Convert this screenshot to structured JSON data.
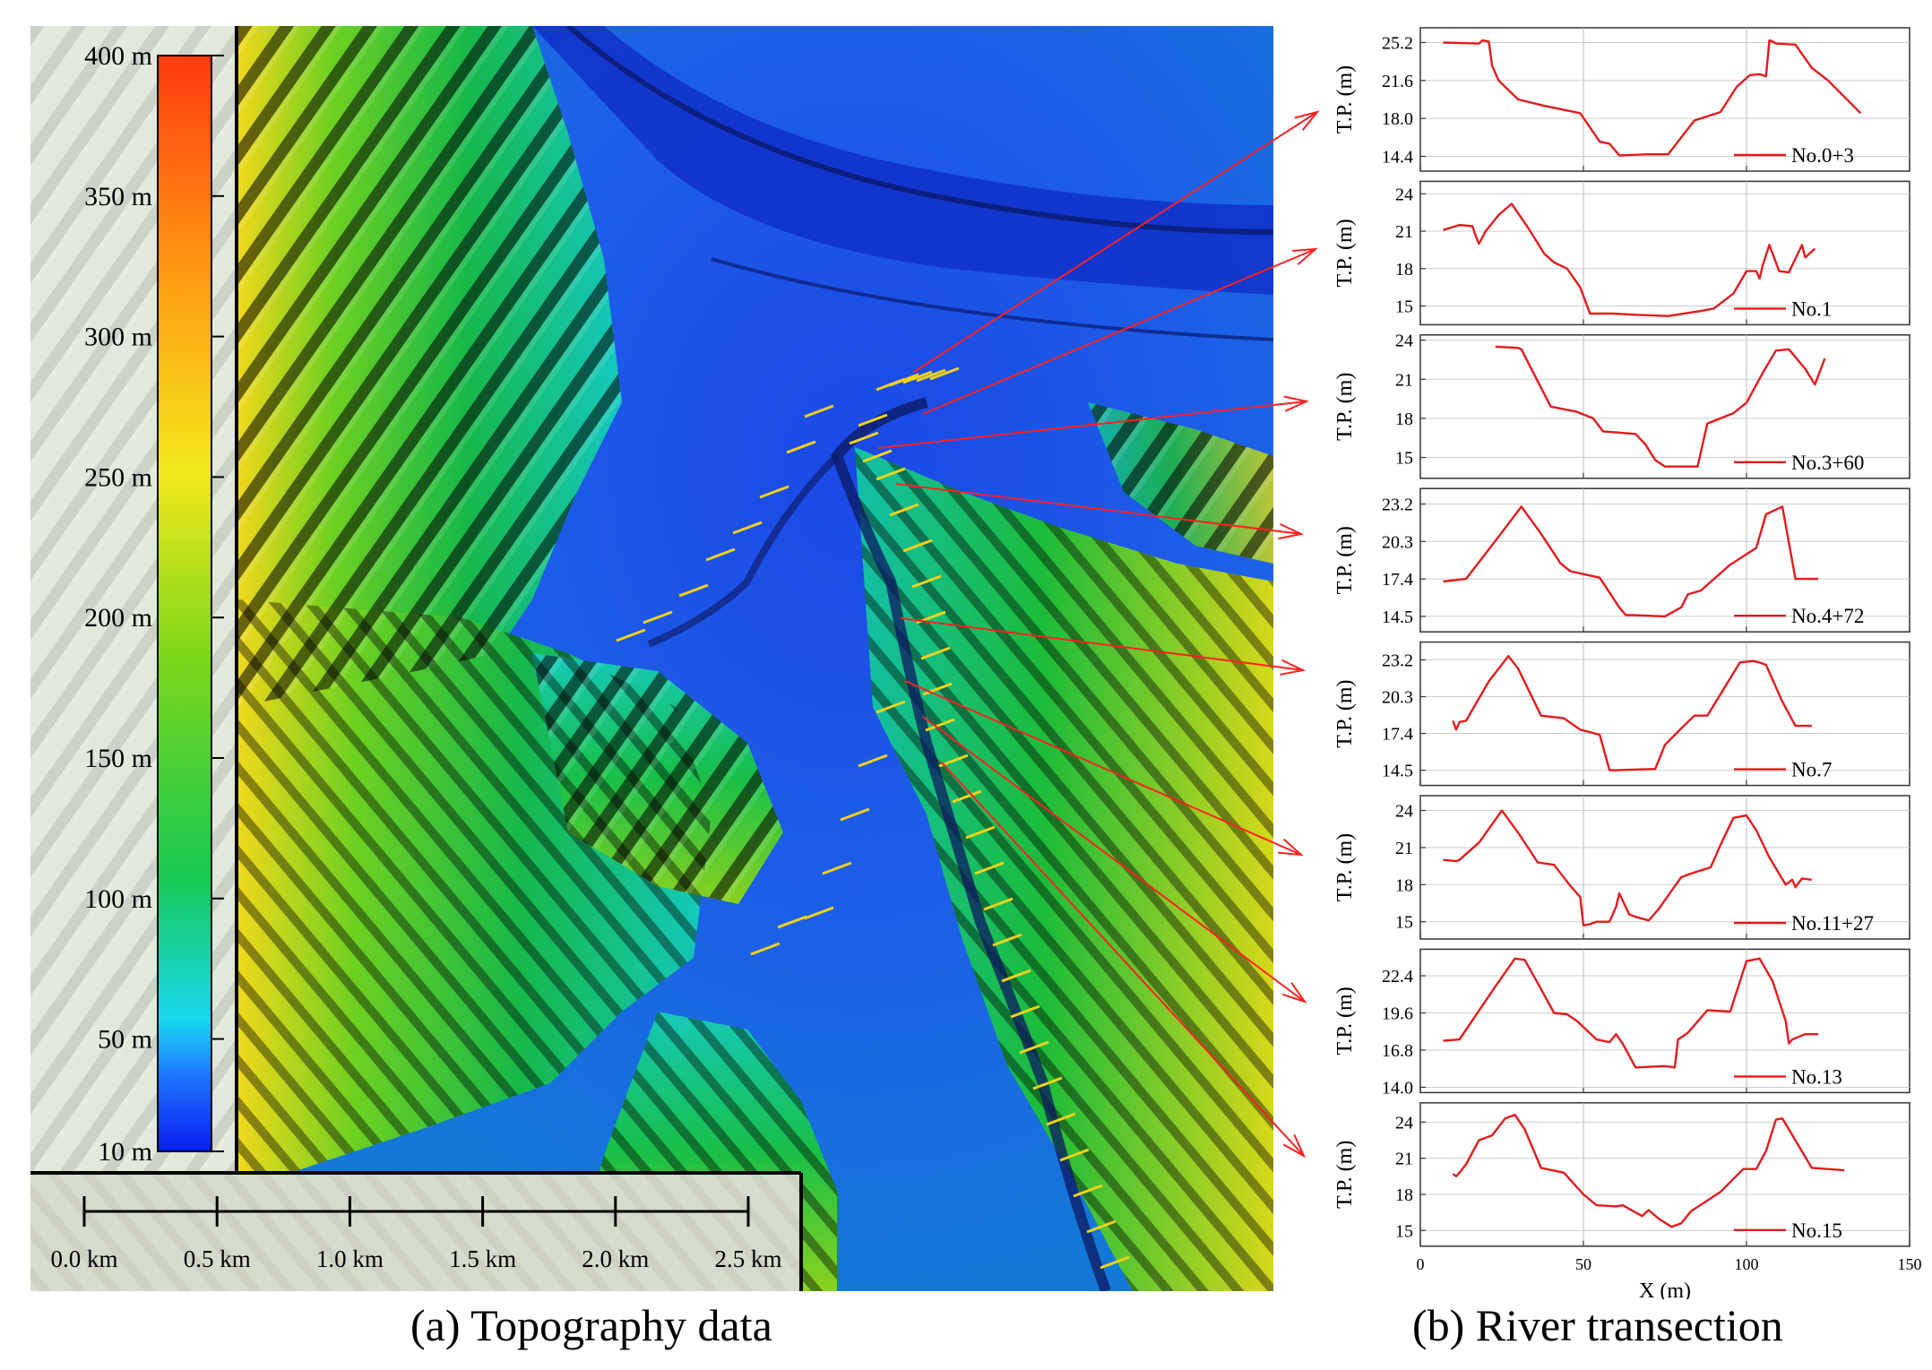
{
  "colors": {
    "profile_line": "#e41a1c",
    "pointer_arrow": "#ff2020",
    "transect_marker": "#f2d21b",
    "river_channel": "#1a3c8c",
    "elevation_ramp": [
      "#0a1cf0",
      "#1f78ff",
      "#18d8f0",
      "#17c853",
      "#7cd619",
      "#f2e81c",
      "#ff9a12",
      "#ff3a10"
    ]
  },
  "map": {
    "caption": "(a) Topography data",
    "colorbar": {
      "unit": "m",
      "labels": [
        "400 m",
        "350 m",
        "300 m",
        "250 m",
        "200 m",
        "150 m",
        "100 m",
        "50 m",
        "10 m"
      ],
      "min": 10,
      "max": 400
    },
    "scalebar": {
      "labels": [
        "0.0 km",
        "0.5 km",
        "1.0 km",
        "1.5 km",
        "2.0 km",
        "2.5 km"
      ]
    }
  },
  "transect_caption": "(b) River transection",
  "chart_data": {
    "type": "line",
    "xlabel": "X (m)",
    "ylabel": "T.P. (m)",
    "xlim": [
      0,
      150
    ],
    "xticks": [
      0,
      50,
      100,
      150
    ],
    "grid": true,
    "legend_placement": "bottom-right",
    "panels": [
      {
        "name": "No.0+3",
        "yticks": [
          "25.2",
          "21.6",
          "18.0",
          "14.4"
        ],
        "ylim": [
          13,
          26.6
        ],
        "x": [
          7,
          18,
          19,
          21,
          22,
          24,
          30,
          38,
          49,
          55,
          58,
          61,
          70,
          76,
          84,
          92,
          97,
          101,
          104,
          106,
          107,
          108,
          109,
          115,
          120,
          125,
          135
        ],
        "y": [
          25.2,
          25.1,
          25.4,
          25.3,
          23.0,
          21.6,
          19.8,
          19.2,
          18.5,
          15.8,
          15.6,
          14.5,
          14.6,
          14.6,
          17.8,
          18.6,
          21.0,
          22.1,
          22.2,
          22.0,
          25.4,
          25.3,
          25.1,
          25.0,
          22.8,
          21.6,
          18.5
        ]
      },
      {
        "name": "No.1",
        "yticks": [
          "24",
          "21",
          "18",
          "15"
        ],
        "ylim": [
          13.5,
          25
        ],
        "x": [
          7,
          12,
          16,
          17,
          18,
          20,
          24,
          28,
          33,
          38,
          41,
          45,
          49,
          52,
          59,
          66,
          76,
          86,
          90,
          96,
          100,
          103,
          104,
          105,
          107,
          110,
          113,
          117,
          118,
          121
        ],
        "y": [
          21.1,
          21.5,
          21.4,
          20.6,
          20.0,
          21.0,
          22.3,
          23.2,
          21.3,
          19.2,
          18.5,
          18.0,
          16.5,
          14.4,
          14.4,
          14.3,
          14.2,
          14.6,
          14.8,
          16.0,
          17.8,
          17.8,
          17.2,
          18.3,
          19.9,
          17.8,
          17.7,
          19.9,
          18.9,
          19.6
        ]
      },
      {
        "name": "No.3+60",
        "yticks": [
          "24",
          "21",
          "18",
          "15"
        ],
        "ylim": [
          13.4,
          24.4
        ],
        "x": [
          23,
          30,
          31,
          34,
          40,
          48,
          53,
          56,
          66,
          69,
          72,
          75,
          78,
          85,
          88,
          96,
          100,
          105,
          109,
          113,
          118,
          121,
          124
        ],
        "y": [
          23.5,
          23.4,
          23.3,
          21.8,
          18.9,
          18.5,
          18.0,
          17.0,
          16.8,
          16.0,
          14.8,
          14.3,
          14.3,
          14.3,
          17.6,
          18.4,
          19.2,
          21.5,
          23.2,
          23.3,
          21.8,
          20.6,
          22.6
        ]
      },
      {
        "name": "No.4+72",
        "yticks": [
          "23.2",
          "20.3",
          "17.4",
          "14.5"
        ],
        "ylim": [
          13.3,
          24.4
        ],
        "x": [
          7,
          14,
          25,
          31,
          37,
          43,
          46,
          55,
          61,
          63,
          65,
          75,
          80,
          82,
          86,
          95,
          103,
          106,
          111,
          115,
          118,
          122
        ],
        "y": [
          17.2,
          17.4,
          21.0,
          23.0,
          20.9,
          18.6,
          18.0,
          17.5,
          15.2,
          14.6,
          14.6,
          14.5,
          15.2,
          16.2,
          16.5,
          18.5,
          19.8,
          22.4,
          23.0,
          17.4,
          17.4,
          17.4
        ],
        "x_override": null
      },
      {
        "name": "No.7",
        "yticks": [
          "23.2",
          "20.3",
          "17.4",
          "14.5"
        ],
        "ylim": [
          13.3,
          24.6
        ],
        "x": [
          10,
          11,
          12,
          14,
          21,
          27,
          30,
          37,
          44,
          49,
          55,
          58,
          60,
          72,
          75,
          80,
          84,
          88,
          98,
          102,
          104,
          106,
          111,
          115,
          120
        ],
        "y": [
          18.4,
          17.7,
          18.3,
          18.4,
          21.5,
          23.5,
          22.5,
          18.8,
          18.6,
          17.7,
          17.3,
          14.5,
          14.5,
          14.6,
          16.5,
          17.8,
          18.8,
          18.8,
          23.0,
          23.1,
          23.0,
          22.8,
          19.9,
          18.0,
          18.0
        ],
        "fixup": true
      },
      {
        "name": "No.11+27",
        "yticks": [
          "24",
          "21",
          "18",
          "15"
        ],
        "ylim": [
          13.6,
          25.2
        ],
        "x": [
          7,
          11,
          12,
          18,
          25,
          30,
          36,
          41,
          46,
          49,
          50,
          52,
          54,
          58,
          60,
          61,
          64,
          66,
          70,
          73,
          77,
          80,
          83,
          89,
          92,
          96,
          100,
          103,
          107,
          112,
          114,
          115,
          117,
          120
        ],
        "y": [
          20.0,
          19.9,
          20.0,
          21.4,
          24.0,
          22.2,
          19.8,
          19.6,
          17.9,
          17.0,
          14.7,
          14.8,
          15.0,
          15.0,
          16.2,
          17.3,
          15.6,
          15.4,
          15.1,
          16.0,
          17.5,
          18.6,
          18.9,
          19.4,
          21.2,
          23.4,
          23.6,
          22.4,
          20.2,
          18.0,
          18.4,
          17.8,
          18.5,
          18.4
        ]
      },
      {
        "name": "No.13",
        "yticks": [
          "22.4",
          "19.6",
          "16.8",
          "14.0"
        ],
        "ylim": [
          13.6,
          24.4
        ],
        "x": [
          7,
          12,
          23,
          29,
          32,
          37,
          41,
          45,
          48,
          54,
          58,
          60,
          62,
          66,
          75,
          78,
          79,
          82,
          88,
          95,
          100,
          104,
          108,
          112,
          113,
          114,
          118,
          122
        ],
        "y": [
          17.5,
          17.6,
          21.6,
          23.7,
          23.6,
          21.4,
          19.6,
          19.5,
          19.0,
          17.6,
          17.4,
          18.0,
          17.3,
          15.5,
          15.6,
          15.5,
          17.6,
          18.1,
          19.8,
          19.7,
          23.5,
          23.7,
          22.0,
          19.0,
          17.3,
          17.6,
          18.0,
          18.0
        ]
      },
      {
        "name": "No.15",
        "yticks": [
          "24",
          "21",
          "18",
          "15"
        ],
        "ylim": [
          13.7,
          25.6
        ],
        "x": [
          10,
          11,
          12,
          14,
          18,
          22,
          26,
          29,
          32,
          37,
          44,
          50,
          54,
          60,
          62,
          68,
          70,
          73,
          77,
          80,
          83,
          92,
          99,
          103,
          106,
          109,
          111,
          113,
          120,
          130
        ],
        "y": [
          19.7,
          19.5,
          19.8,
          20.5,
          22.5,
          22.9,
          24.3,
          24.6,
          23.4,
          20.2,
          19.8,
          18.0,
          17.1,
          17.0,
          17.1,
          16.2,
          16.7,
          16.0,
          15.3,
          15.6,
          16.6,
          18.2,
          20.1,
          20.1,
          21.6,
          24.2,
          24.3,
          23.4,
          20.2,
          20.0
        ]
      }
    ]
  }
}
